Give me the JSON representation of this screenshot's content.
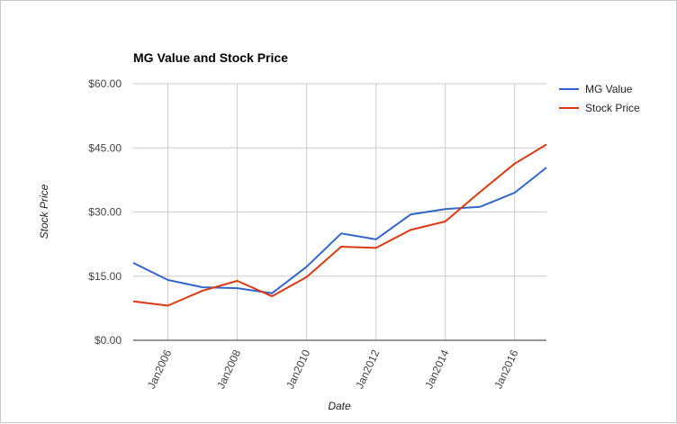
{
  "chart_data": {
    "type": "line",
    "title": "MG Value and Stock Price",
    "xlabel": "Date",
    "ylabel": "Stock Price",
    "x_tick_labels": [
      "Jan2006",
      "Jan2008",
      "Jan2010",
      "Jan2012",
      "Jan2014",
      "Jan2016"
    ],
    "x_tick_years": [
      2006,
      2008,
      2010,
      2012,
      2014,
      2016
    ],
    "xlim": [
      "2005-01",
      "2016-12"
    ],
    "ylim": [
      0,
      60
    ],
    "y_ticks": [
      0,
      15,
      30,
      45,
      60
    ],
    "y_tick_labels": [
      "$0.00",
      "$15.00",
      "$30.00",
      "$45.00",
      "$60.00"
    ],
    "grid": true,
    "legend_position": "right",
    "x": [
      "2005-01",
      "2006-01",
      "2007-01",
      "2008-01",
      "2009-01",
      "2010-01",
      "2011-01",
      "2012-01",
      "2013-01",
      "2014-01",
      "2015-01",
      "2016-01",
      "2016-12"
    ],
    "series": [
      {
        "name": "MG Value",
        "color": "#3366cc",
        "values": [
          18.1,
          14.1,
          12.4,
          12.2,
          11.0,
          17.2,
          25.0,
          23.6,
          29.4,
          30.7,
          31.2,
          34.5,
          40.4
        ]
      },
      {
        "name": "Stock Price",
        "color": "#dc3912",
        "values": [
          9.1,
          8.1,
          11.6,
          13.9,
          10.3,
          14.8,
          21.9,
          21.6,
          25.8,
          27.8,
          34.7,
          41.3,
          45.8
        ]
      }
    ]
  }
}
